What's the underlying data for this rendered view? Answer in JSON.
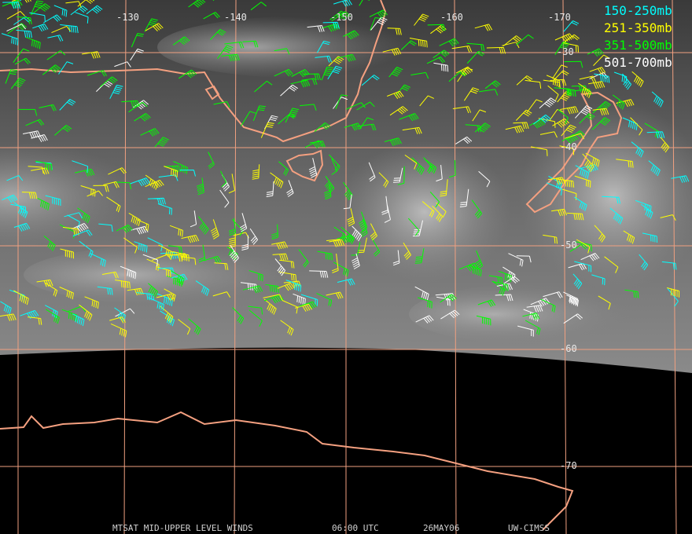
{
  "map": {
    "lon_labels": [
      "-130",
      "-140",
      "-150",
      "-160",
      "-170"
    ],
    "lat_labels": [
      "-30",
      "-40",
      "-50",
      "-60",
      "-70"
    ],
    "legend": [
      {
        "label": "150-250mb",
        "color": "#00ffff"
      },
      {
        "label": "251-350mb",
        "color": "#ffff00"
      },
      {
        "label": "351-500mb",
        "color": "#00ff00"
      },
      {
        "label": "501-700mb",
        "color": "#ffffff"
      }
    ],
    "footer": {
      "title": "MTSAT MID-UPPER LEVEL WINDS",
      "time": "06:00 UTC",
      "date": "26MAY06",
      "source": "UW-CIMSS"
    }
  }
}
